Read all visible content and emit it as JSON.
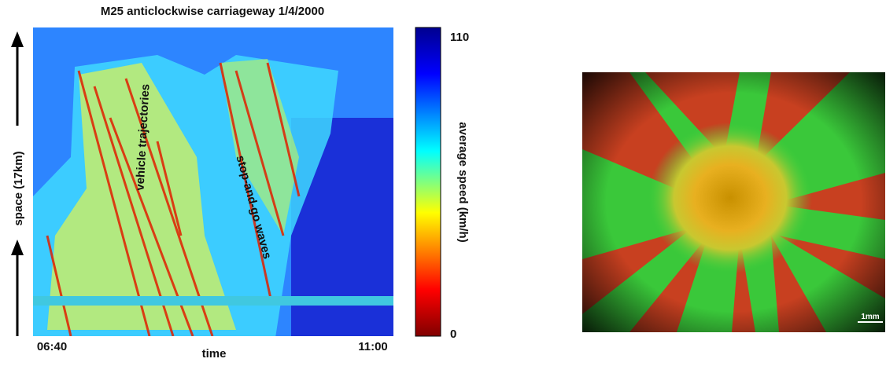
{
  "left_figure": {
    "title": "M25 anticlockwise carriageway 1/4/2000",
    "y_label": "space (17km)",
    "x_label": "time",
    "x_start": "06:40",
    "x_end": "11:00",
    "colorbar_label": "average speed (km/h)",
    "colorbar_max": "110",
    "colorbar_min": "0",
    "annotations": [
      "vehicle trajectories",
      "stop-and-go waves"
    ]
  },
  "right_figure": {
    "scale_bar": "1mm"
  }
}
